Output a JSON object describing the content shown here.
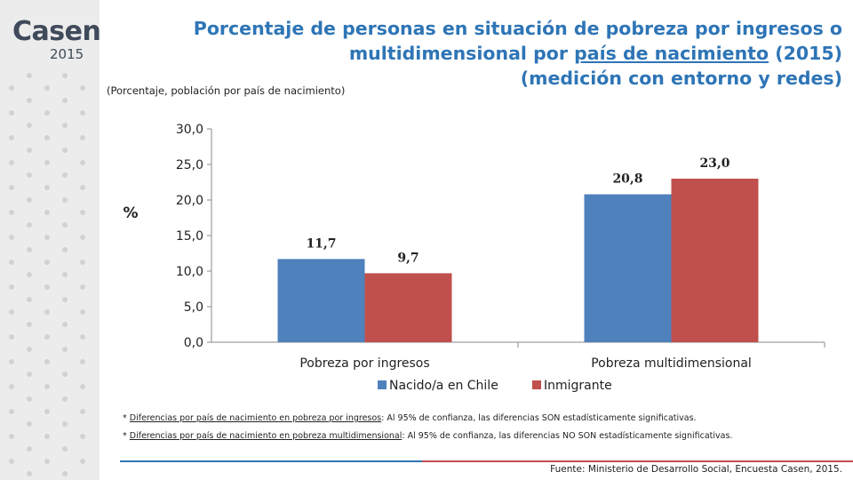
{
  "logo": {
    "word": "Casen",
    "year": "2015"
  },
  "title": {
    "line1": "Porcentaje de personas en situación de pobreza por ingresos o",
    "line2_pre": "multidimensional por ",
    "line2_underlined": "país de nacimiento",
    "line2_post": " (2015)",
    "line3": "(medición con entorno y redes)"
  },
  "subtitle": "(Porcentaje, población por país de nacimiento)",
  "chart_data": {
    "type": "bar",
    "categories": [
      "Pobreza por ingresos",
      "Pobreza multidimensional"
    ],
    "series": [
      {
        "name": "Nacido/a en Chile",
        "values": [
          11.7,
          20.8
        ],
        "labels": [
          "11,7",
          "20,8"
        ],
        "color": "#4f81bd"
      },
      {
        "name": "Inmigrante",
        "values": [
          9.7,
          23.0
        ],
        "labels": [
          "9,7",
          "23,0"
        ],
        "color": "#c0504d"
      }
    ],
    "ylabel": "%",
    "ylim": [
      0,
      30
    ],
    "yticks": [
      0,
      5,
      10,
      15,
      20,
      25,
      30
    ],
    "ytick_labels": [
      "0,0",
      "5,0",
      "10,0",
      "15,0",
      "20,0",
      "25,0",
      "30,0"
    ],
    "grid": false,
    "legend_position": "bottom"
  },
  "notes": [
    {
      "prefix": "* ",
      "underlined": "Diferencias por país de nacimiento en pobreza por ingresos",
      "rest": ": Al 95% de confianza, las diferencias SON estadísticamente significativas."
    },
    {
      "prefix": "* ",
      "underlined": "Diferencias por país de nacimiento en pobreza  multidimensional",
      "rest": ": Al 95% de confianza, las diferencias NO SON estadísticamente significativas."
    }
  ],
  "source": "Fuente: Ministerio de Desarrollo Social, Encuesta Casen, 2015.",
  "colors": {
    "title": "#2e75b6",
    "sidebar": "#ececec",
    "logo": "#3f4a5a"
  }
}
